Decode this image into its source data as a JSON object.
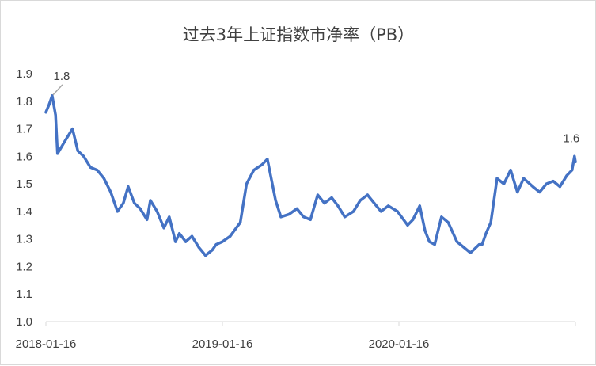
{
  "chart_data": {
    "type": "line",
    "title": "过去3年上证指数市净率（PB）",
    "xlabel": "",
    "ylabel": "",
    "ylim": [
      1.0,
      1.9
    ],
    "ytick_labels": [
      "1.0",
      "1.1",
      "1.2",
      "1.3",
      "1.4",
      "1.5",
      "1.6",
      "1.7",
      "1.8",
      "1.9"
    ],
    "x_range": [
      "2018-01-16",
      "2021-01-15"
    ],
    "xtick_labels": [
      "2018-01-16",
      "2019-01-16",
      "2020-01-16"
    ],
    "grid": false,
    "legend": "none",
    "line_color": "#4472c4",
    "annotations": [
      {
        "text": "1.8",
        "x": "2018-01-29",
        "y": 1.82,
        "leader_line": true
      },
      {
        "text": "1.6",
        "x": "2021-01-13",
        "y": 1.6,
        "leader_line": false
      }
    ],
    "series": [
      {
        "x": [
          "2018-01-16",
          "2018-01-23",
          "2018-01-29",
          "2018-02-05",
          "2018-02-09",
          "2018-02-26",
          "2018-03-12",
          "2018-03-23",
          "2018-04-04",
          "2018-04-18",
          "2018-05-02",
          "2018-05-16",
          "2018-05-30",
          "2018-06-13",
          "2018-06-25",
          "2018-07-05",
          "2018-07-18",
          "2018-07-30",
          "2018-08-13",
          "2018-08-20",
          "2018-09-03",
          "2018-09-17",
          "2018-09-28",
          "2018-10-11",
          "2018-10-19",
          "2018-11-01",
          "2018-11-14",
          "2018-11-28",
          "2018-12-12",
          "2018-12-26",
          "2019-01-03",
          "2019-01-16",
          "2019-02-01",
          "2019-02-22",
          "2019-03-07",
          "2019-03-22",
          "2019-04-08",
          "2019-04-19",
          "2019-05-06",
          "2019-05-17",
          "2019-06-03",
          "2019-06-19",
          "2019-07-03",
          "2019-07-17",
          "2019-08-01",
          "2019-08-15",
          "2019-08-30",
          "2019-09-12",
          "2019-09-26",
          "2019-10-14",
          "2019-10-28",
          "2019-11-12",
          "2019-11-26",
          "2019-12-10",
          "2019-12-25",
          "2020-01-13",
          "2020-02-03",
          "2020-02-14",
          "2020-02-28",
          "2020-03-10",
          "2020-03-19",
          "2020-03-30",
          "2020-04-13",
          "2020-04-27",
          "2020-05-15",
          "2020-05-29",
          "2020-06-12",
          "2020-06-30",
          "2020-07-06",
          "2020-07-14",
          "2020-07-24",
          "2020-08-06",
          "2020-08-20",
          "2020-09-03",
          "2020-09-17",
          "2020-09-30",
          "2020-10-19",
          "2020-11-02",
          "2020-11-16",
          "2020-11-30",
          "2020-12-14",
          "2020-12-28",
          "2021-01-08",
          "2021-01-13",
          "2021-01-15"
        ],
        "values": [
          1.76,
          1.79,
          1.82,
          1.75,
          1.61,
          1.66,
          1.7,
          1.62,
          1.6,
          1.56,
          1.55,
          1.52,
          1.47,
          1.4,
          1.43,
          1.49,
          1.43,
          1.41,
          1.37,
          1.44,
          1.4,
          1.34,
          1.38,
          1.29,
          1.32,
          1.29,
          1.31,
          1.27,
          1.24,
          1.26,
          1.28,
          1.29,
          1.31,
          1.36,
          1.5,
          1.55,
          1.57,
          1.59,
          1.44,
          1.38,
          1.39,
          1.41,
          1.38,
          1.37,
          1.46,
          1.43,
          1.45,
          1.42,
          1.38,
          1.4,
          1.44,
          1.46,
          1.43,
          1.4,
          1.42,
          1.4,
          1.35,
          1.37,
          1.42,
          1.33,
          1.29,
          1.28,
          1.38,
          1.36,
          1.29,
          1.27,
          1.25,
          1.28,
          1.28,
          1.32,
          1.36,
          1.52,
          1.5,
          1.55,
          1.47,
          1.52,
          1.49,
          1.47,
          1.5,
          1.51,
          1.49,
          1.53,
          1.55,
          1.6,
          1.58
        ]
      }
    ]
  }
}
